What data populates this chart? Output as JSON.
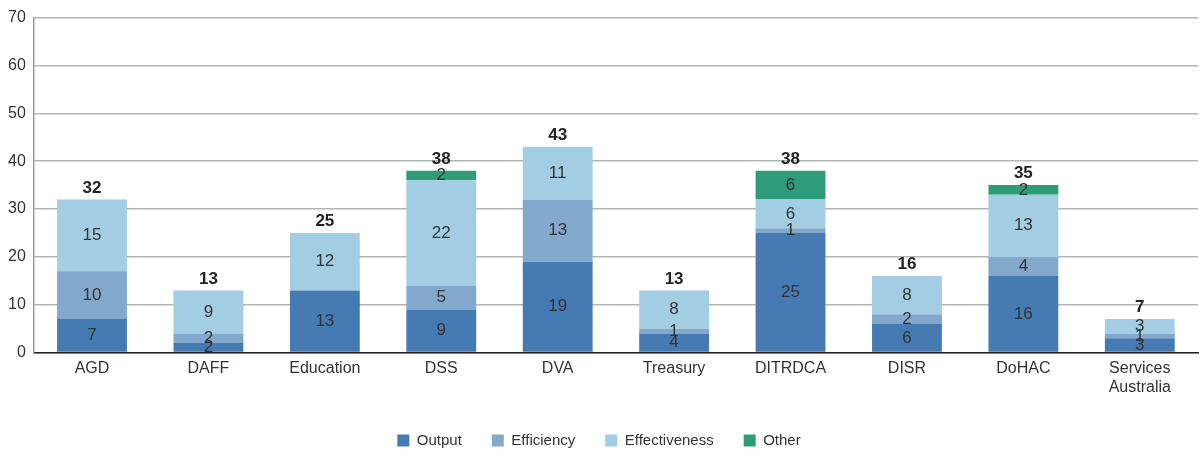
{
  "chart_data": {
    "type": "bar",
    "stacked": true,
    "categories": [
      "AGD",
      "DAFF",
      "Education",
      "DSS",
      "DVA",
      "Treasury",
      "DITRDCA",
      "DISR",
      "DoHAC",
      "Services Australia"
    ],
    "series": [
      {
        "name": "Output",
        "color": "#467ab3",
        "values": [
          7,
          2,
          13,
          9,
          19,
          4,
          25,
          6,
          16,
          3
        ]
      },
      {
        "name": "Efficiency",
        "color": "#82a8cc",
        "values": [
          10,
          2,
          null,
          5,
          13,
          1,
          1,
          2,
          4,
          1
        ]
      },
      {
        "name": "Effectiveness",
        "color": "#a2cde3",
        "values": [
          15,
          9,
          12,
          22,
          11,
          8,
          6,
          8,
          13,
          3
        ]
      },
      {
        "name": "Other",
        "color": "#2e9c78",
        "values": [
          null,
          null,
          null,
          2,
          null,
          null,
          6,
          null,
          2,
          null
        ]
      }
    ],
    "totals": [
      "32",
      "13",
      "25",
      "38",
      "43",
      "13",
      "38",
      "16",
      "35",
      "7"
    ],
    "data_labels": true,
    "ylim": [
      0,
      70
    ],
    "yticks": [
      0,
      10,
      20,
      30,
      40,
      50,
      60,
      70
    ],
    "grid": "y",
    "legend": "bottom"
  }
}
